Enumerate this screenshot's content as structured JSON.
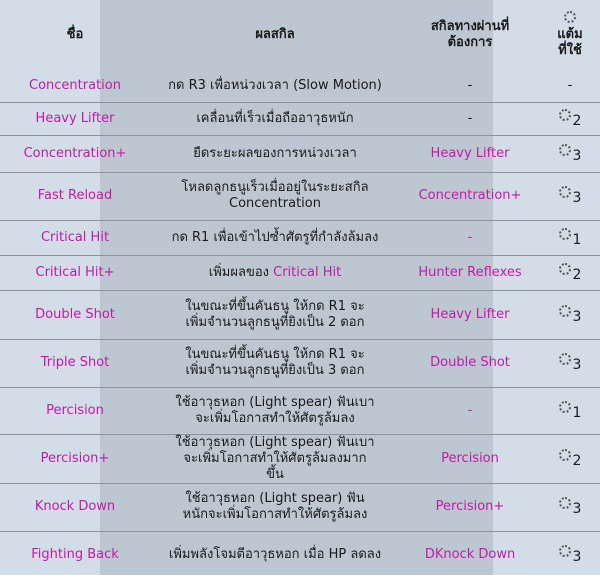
{
  "header": {
    "name": "ชื่อ",
    "effect": "ผลสกิล",
    "prereq": "สกิลทางผ่านที่ต้องการ",
    "points": "แต้มที่ใช้",
    "points_icon": "skill-point-icon"
  },
  "colors": {
    "skill_name": "#c21aa6",
    "text": "#1a1a1a",
    "background": "#d2dde8",
    "center_band": "#bcc7d2"
  },
  "rows": [
    {
      "name": "Concentration",
      "effect": "กด R3 เพื่อหน่วงเวลา (Slow Motion)",
      "prereq": "-",
      "points": "-"
    },
    {
      "name": "Heavy Lifter",
      "effect": "เคลื่อนที่เร็วเมื่อถืออาวุธหนัก",
      "prereq": "-",
      "points": "2"
    },
    {
      "name": "Concentration+",
      "effect": "ยืดระยะผลของการหน่วงเวลา",
      "prereq": "Heavy Lifter",
      "points": "3"
    },
    {
      "name": "Fast Reload",
      "effect": "โหลดลูกธนูเร็วเมื่ออยู่ในระยะสกิล Concentration",
      "prereq": "Concentration+",
      "points": "3"
    },
    {
      "name": "Critical Hit",
      "effect": "กด R1 เพื่อเข้าไปซ้ำศัตรูที่กำลังล้มลง",
      "prereq": "-",
      "points": "1"
    },
    {
      "name": "Critical Hit+",
      "effect": "เพิ่มผลของ ",
      "effect_highlight": "Critical Hit",
      "prereq": "Hunter Reflexes",
      "points": "2"
    },
    {
      "name": "Double Shot",
      "effect": "ในขณะที่ขึ้นคันธนู ให้กด R1 จะเพิ่มจำนวนลูกธนูที่ยิงเป็น 2 ดอก",
      "prereq": "Heavy Lifter",
      "points": "3"
    },
    {
      "name": "Triple Shot",
      "effect": "ในขณะที่ขึ้นคันธนู ให้กด R1 จะเพิ่มจำนวนลูกธนูที่ยิงเป็น 3 ดอก",
      "prereq": "Double Shot",
      "points": "3"
    },
    {
      "name": "Percision",
      "effect": "ใช้อาวุธหอก (Light spear) ฟันเบาจะเพิ่มโอกาสทำให้ศัตรูล้มลง",
      "prereq": "-",
      "points": "1"
    },
    {
      "name": "Percision+",
      "effect": "ใช้อาวุธหอก (Light spear) ฟันเบาจะเพิ่มโอกาสทำให้ศัตรูล้มลงมากขึ้น",
      "prereq": "Percision",
      "points": "2"
    },
    {
      "name": "Knock Down",
      "effect": "ใช้อาวุธหอก (Light spear) ฟันหนักจะเพิ่มโอกาสทำให้ศัตรูล้มลง",
      "prereq": "Percision+",
      "points": "3"
    },
    {
      "name": "Fighting Back",
      "effect": "เพิ่มพลังโจมตีอาวุธหอก เมื่อ HP ลดลง",
      "prereq": "DKnock Down",
      "points": "3"
    }
  ]
}
